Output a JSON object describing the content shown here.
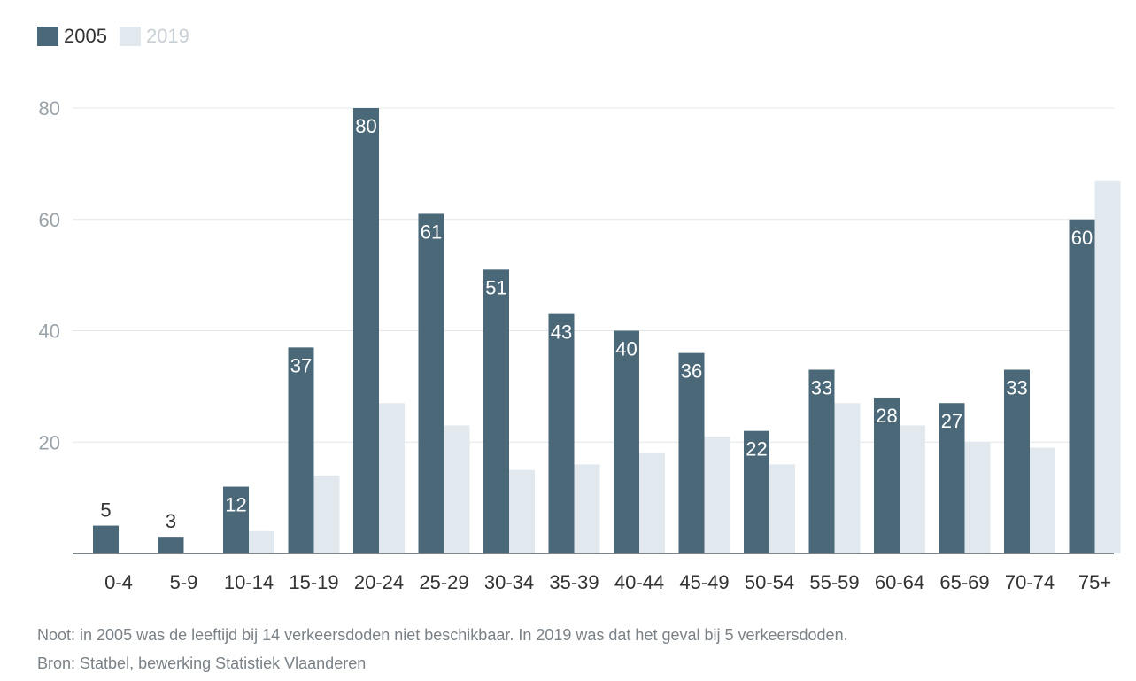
{
  "legend": {
    "items": [
      {
        "label": "2005",
        "color": "#4a6878",
        "text_color": "#333333"
      },
      {
        "label": "2019",
        "color": "#e2e9ee",
        "text_color": "#c8d0d6"
      }
    ]
  },
  "chart_data": {
    "type": "bar",
    "title": "",
    "xlabel": "",
    "ylabel": "",
    "ylim": [
      0,
      80
    ],
    "yticks": [
      20,
      40,
      60,
      80
    ],
    "grid": true,
    "legend_position": "top-left",
    "categories": [
      "0-4",
      "5-9",
      "10-14",
      "15-19",
      "20-24",
      "25-29",
      "30-34",
      "35-39",
      "40-44",
      "45-49",
      "50-54",
      "55-59",
      "60-64",
      "65-69",
      "70-74",
      "75+"
    ],
    "series": [
      {
        "name": "2005",
        "color": "#4a6878",
        "values": [
          5,
          3,
          12,
          37,
          80,
          61,
          51,
          43,
          40,
          36,
          22,
          33,
          28,
          27,
          33,
          60
        ]
      },
      {
        "name": "2019",
        "color": "#e2e9ee",
        "values": [
          0,
          0,
          4,
          14,
          27,
          23,
          15,
          16,
          18,
          21,
          16,
          27,
          23,
          20,
          19,
          67
        ]
      }
    ],
    "data_labels_series": "2005"
  },
  "footer": {
    "note": "Noot: in 2005 was de leeftijd bij 14 verkeersdoden niet beschikbaar. In 2019 was dat het geval bij 5 verkeersdoden.",
    "source": "Bron: Statbel, bewerking Statistiek Vlaanderen"
  }
}
